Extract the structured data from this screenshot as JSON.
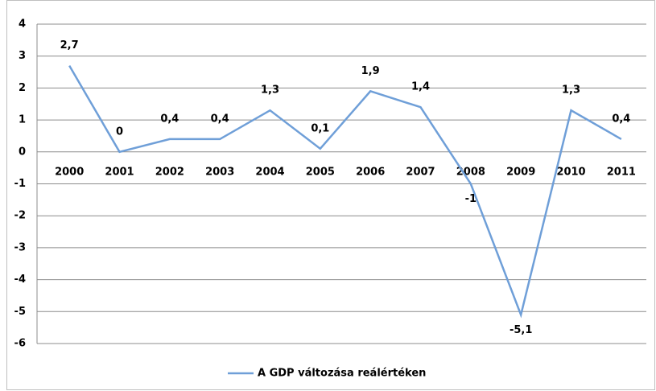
{
  "chart_data": {
    "type": "line",
    "categories": [
      "2000",
      "2001",
      "2002",
      "2003",
      "2004",
      "2005",
      "2006",
      "2007",
      "2008",
      "2009",
      "2010",
      "2011"
    ],
    "series": [
      {
        "name": "A GDP változása reálértéken",
        "color": "#6f9fd8",
        "values": [
          2.7,
          0,
          0.4,
          0.4,
          1.3,
          0.1,
          1.9,
          1.4,
          -1,
          -5.1,
          1.3,
          0.4
        ],
        "value_labels": [
          "2,7",
          "0",
          "0,4",
          "0,4",
          "1,3",
          "0,1",
          "1,9",
          "1,4",
          "-1",
          "-5,1",
          "1,3",
          "0,4"
        ]
      }
    ],
    "ylim": [
      -6,
      4
    ],
    "yticks": [
      -6,
      -5,
      -4,
      -3,
      -2,
      -1,
      0,
      1,
      2,
      3,
      4
    ],
    "grid": true,
    "legend": "bottom"
  }
}
